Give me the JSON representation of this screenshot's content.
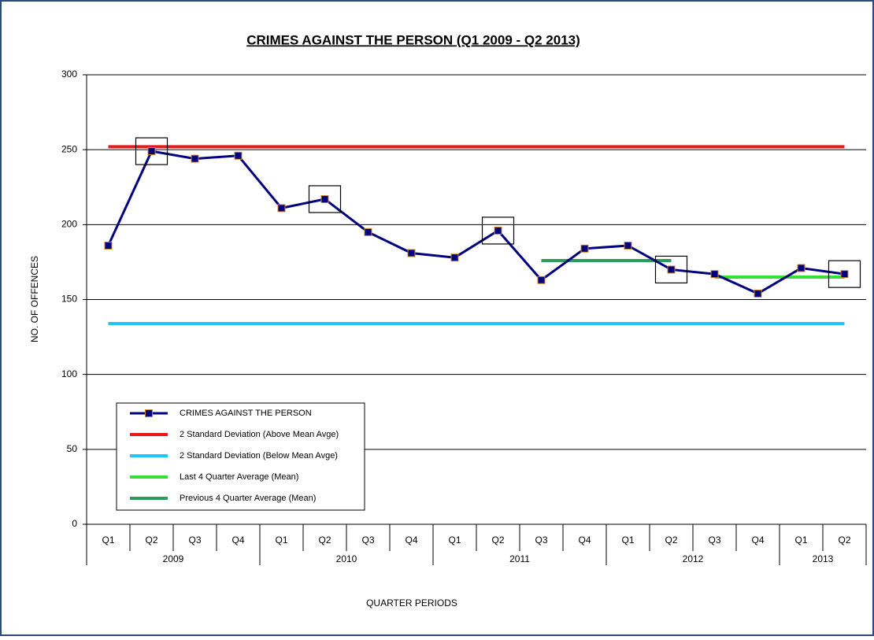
{
  "chart_data": {
    "type": "line",
    "title": "CRIMES AGAINST THE PERSON (Q1 2009 - Q2 2013)",
    "y_label": "NO. OF OFFENCES",
    "x_label": "QUARTER PERIODS",
    "categories": [
      "Q1",
      "Q2",
      "Q3",
      "Q4",
      "Q1",
      "Q2",
      "Q3",
      "Q4",
      "Q1",
      "Q2",
      "Q3",
      "Q4",
      "Q1",
      "Q2",
      "Q3",
      "Q4",
      "Q1",
      "Q2"
    ],
    "groups": [
      {
        "name": "2009",
        "count": 4
      },
      {
        "name": "2010",
        "count": 4
      },
      {
        "name": "2011",
        "count": 4
      },
      {
        "name": "2012",
        "count": 4
      },
      {
        "name": "2013",
        "count": 2
      }
    ],
    "ylim": [
      0,
      300
    ],
    "yticks": [
      0,
      50,
      100,
      150,
      200,
      250,
      300
    ],
    "grid": true,
    "highlighted": [
      1,
      5,
      9,
      13,
      17
    ],
    "series": [
      {
        "name": "CRIMES AGAINST THE PERSON",
        "color": "#000080",
        "marker_edge": "#d08a2a",
        "markers": true,
        "values": [
          186,
          249,
          244,
          246,
          211,
          217,
          195,
          181,
          178,
          196,
          163,
          184,
          186,
          170,
          167,
          154,
          171,
          167
        ]
      },
      {
        "name": "2 Standard Deviation (Above Mean Avge)",
        "color": "#e8191b",
        "markers": false,
        "values": [
          252,
          252,
          252,
          252,
          252,
          252,
          252,
          252,
          252,
          252,
          252,
          252,
          252,
          252,
          252,
          252,
          252,
          252
        ]
      },
      {
        "name": "2 Standard Deviation (Below Mean Avge)",
        "color": "#1ec8f0",
        "markers": false,
        "values": [
          134,
          134,
          134,
          134,
          134,
          134,
          134,
          134,
          134,
          134,
          134,
          134,
          134,
          134,
          134,
          134,
          134,
          134
        ]
      },
      {
        "name": "Last 4 Quarter Average (Mean)",
        "color": "#33e033",
        "markers": false,
        "values": [
          null,
          null,
          null,
          null,
          null,
          null,
          null,
          null,
          null,
          null,
          null,
          null,
          null,
          null,
          165,
          165,
          165,
          165
        ]
      },
      {
        "name": "Previous 4 Quarter Average (Mean)",
        "color": "#2e9a5c",
        "markers": false,
        "values": [
          null,
          null,
          null,
          null,
          null,
          null,
          null,
          null,
          null,
          null,
          176,
          176,
          176,
          176,
          null,
          null,
          null,
          null
        ]
      }
    ]
  }
}
